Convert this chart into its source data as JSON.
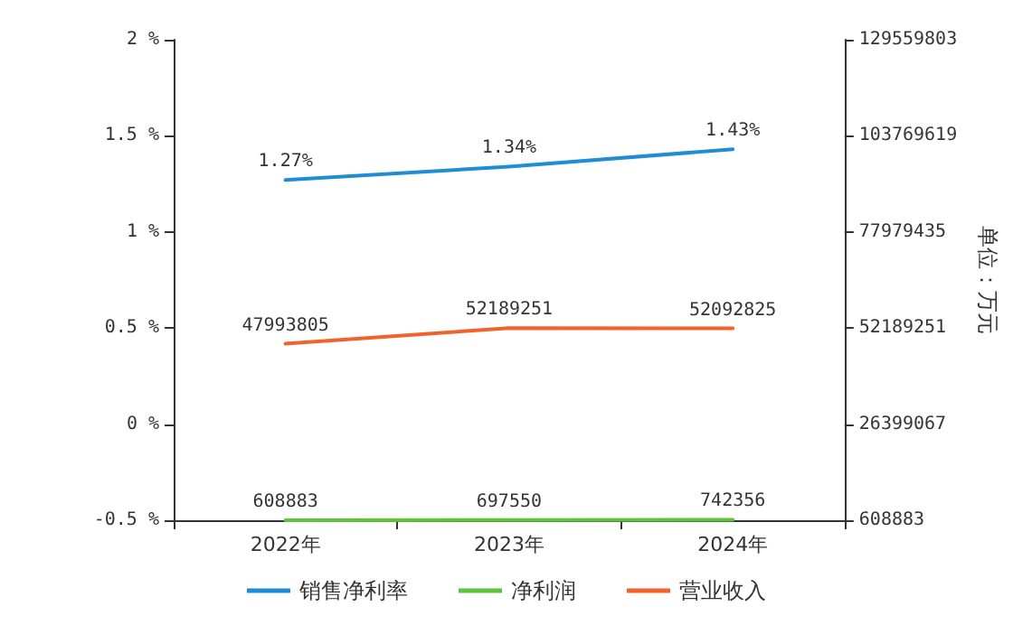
{
  "chart_data": {
    "type": "line",
    "categories": [
      "2022年",
      "2023年",
      "2024年"
    ],
    "series": [
      {
        "name": "销售净利率",
        "color": "#1f8dd6",
        "values": [
          1.27,
          1.34,
          1.43
        ],
        "value_labels": [
          "1.27%",
          "1.34%",
          "1.43%"
        ]
      },
      {
        "name": "净利润",
        "color": "#5ec43c",
        "values": [
          608883,
          697550,
          742356
        ],
        "axis": "y2",
        "value_labels": [
          "608883",
          "697550",
          "742356"
        ]
      },
      {
        "name": "营业收入",
        "color": "#f2632b",
        "values": [
          47993805,
          52189251,
          52092825
        ],
        "axis": "y2",
        "value_labels": [
          "47993805",
          "52189251",
          "52092825"
        ]
      }
    ],
    "ylim": [
      -0.5,
      2
    ],
    "yticks": [
      {
        "value": -0.5,
        "label": "-0.5 %"
      },
      {
        "value": 0,
        "label": "0 %"
      },
      {
        "value": 0.5,
        "label": "0.5 %"
      },
      {
        "value": 1,
        "label": "1 %"
      },
      {
        "value": 1.5,
        "label": "1.5 %"
      },
      {
        "value": 2,
        "label": "2 %"
      }
    ],
    "y2lim": [
      608883,
      129559803
    ],
    "y2ticks": [
      608883,
      26399067,
      52189251,
      77979435,
      103769619,
      129559803
    ],
    "y2label": "单位：万元",
    "legend": "bottom",
    "grid": false,
    "marker": "none",
    "line_style": "solid"
  }
}
